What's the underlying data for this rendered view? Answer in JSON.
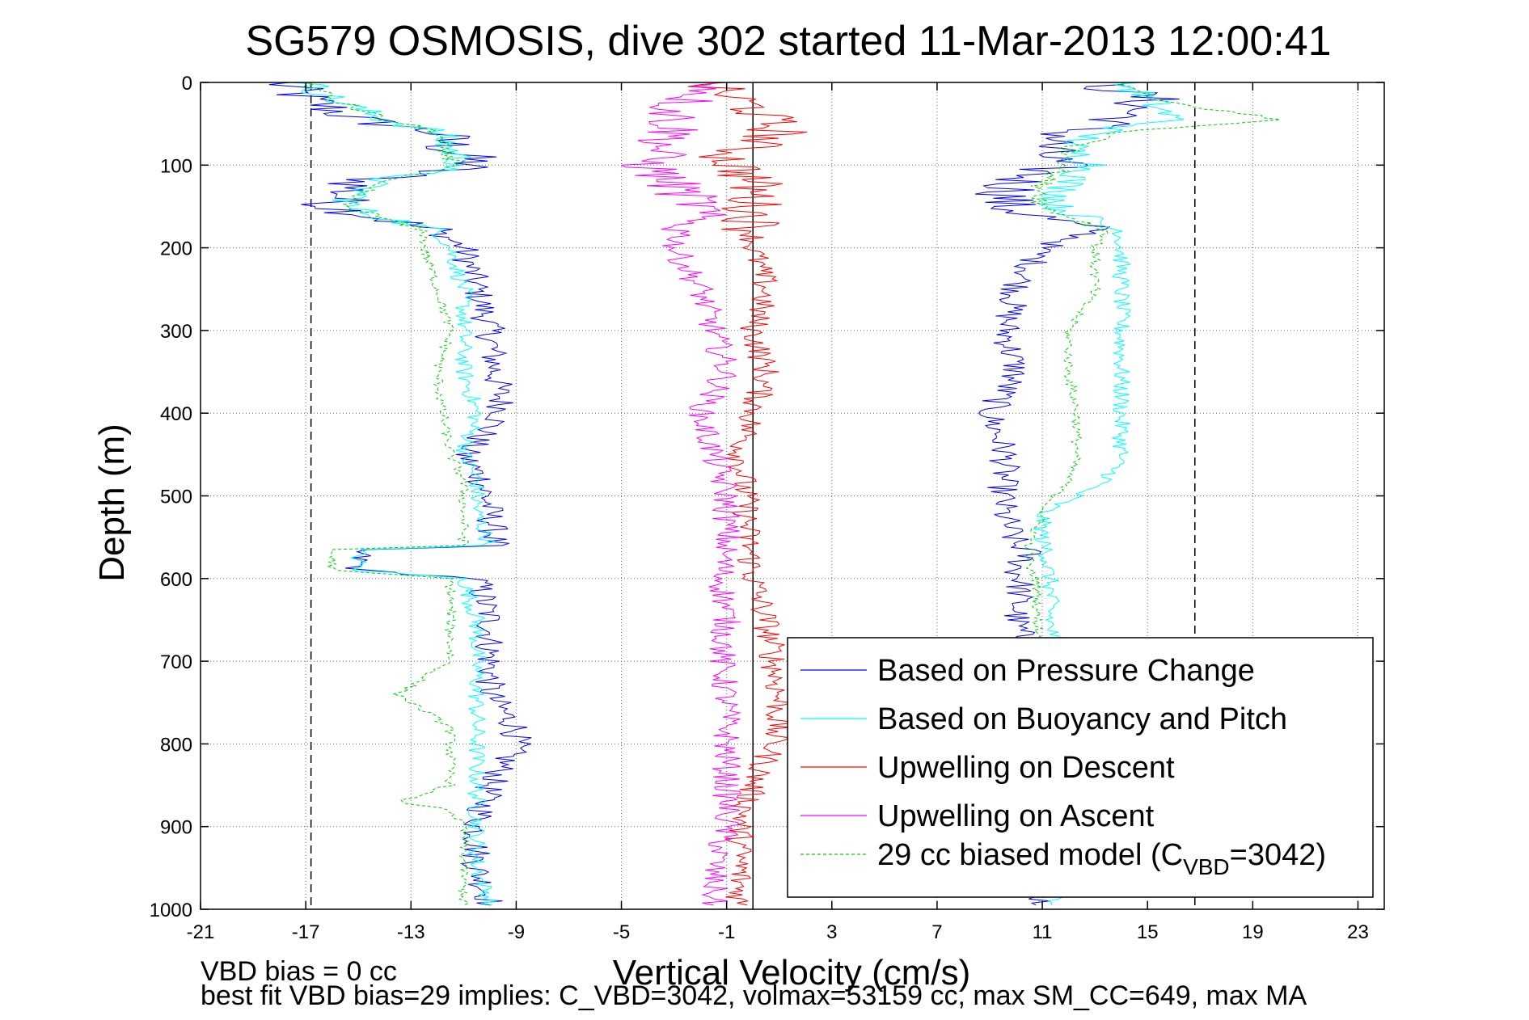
{
  "chart_data": {
    "type": "line",
    "title": "SG579 OSMOSIS, dive 302 started 11-Mar-2013 12:00:41",
    "xlabel": "Vertical Velocity (cm/s)",
    "ylabel": "Depth (m)",
    "xlim": [
      -21,
      24
    ],
    "ylim": [
      0,
      1000
    ],
    "y_reversed": true,
    "x_ticks": [
      -21,
      -17,
      -13,
      -9,
      -5,
      -1,
      3,
      7,
      11,
      15,
      19,
      23
    ],
    "y_ticks": [
      0,
      100,
      200,
      300,
      400,
      500,
      600,
      700,
      800,
      900,
      1000
    ],
    "grid": true,
    "legend_position": "bottom-right",
    "reference_lines": [
      {
        "x": -16.8,
        "style": "dashed",
        "color": "#000000"
      },
      {
        "x": 0,
        "style": "solid",
        "color": "#000000"
      },
      {
        "x": 16.8,
        "style": "dashed",
        "color": "#000000"
      }
    ],
    "series": [
      {
        "name": "Based on Pressure Change",
        "color": "#0000ff",
        "style": "solid",
        "depth": [
          0,
          20,
          45,
          60,
          80,
          100,
          120,
          150,
          180,
          200,
          250,
          300,
          350,
          400,
          450,
          480,
          520,
          560,
          565,
          590,
          600,
          650,
          700,
          740,
          780,
          800,
          850,
          900,
          950,
          990
        ],
        "descent": [
          -18,
          -17,
          -15,
          -12,
          -11.5,
          -10.5,
          -15,
          -16,
          -12,
          -11,
          -10.5,
          -10,
          -9.8,
          -9.5,
          -11,
          -10.3,
          -10,
          -9.8,
          -15,
          -15,
          -10.5,
          -10,
          -10,
          -10,
          -9,
          -9,
          -10,
          -10.5,
          -10.5,
          -10
        ],
        "ascent": [
          13,
          15,
          14,
          12,
          11,
          11.5,
          10,
          9.5,
          13,
          11,
          10,
          9.6,
          10,
          9,
          9.6,
          9.5,
          9.5,
          10,
          10.5,
          10,
          10.2,
          10,
          10.5,
          10.5,
          10.8,
          11,
          11,
          11,
          11,
          11
        ]
      },
      {
        "name": "Based on Buoyancy and Pitch",
        "color": "#00ffff",
        "style": "solid",
        "depth": [
          0,
          20,
          45,
          60,
          80,
          100,
          120,
          150,
          180,
          200,
          250,
          300,
          350,
          400,
          450,
          480,
          520,
          560,
          565,
          590,
          600,
          650,
          700,
          740,
          780,
          800,
          850,
          900,
          950,
          990
        ],
        "descent": [
          -17,
          -16,
          -14,
          -12,
          -11.5,
          -11,
          -14.5,
          -15.5,
          -12,
          -11.5,
          -11,
          -11,
          -11,
          -10.5,
          -11,
          -10.5,
          -10.5,
          -10,
          -15,
          -15,
          -11,
          -10.5,
          -10.5,
          -10.5,
          -10.5,
          -10.5,
          -10.5,
          -10.5,
          -10.5,
          -10
        ],
        "ascent": [
          14,
          15,
          16,
          13,
          12,
          13,
          12,
          11.5,
          14,
          14,
          14,
          14,
          14,
          14,
          14,
          13.5,
          11,
          11,
          11.2,
          11.2,
          11.3,
          11.3,
          11.5,
          11.5,
          11.5,
          11.5,
          11.5,
          11.5,
          11.5,
          11.5
        ]
      },
      {
        "name": "Upwelling on Descent",
        "color": "#ff0000",
        "style": "solid",
        "depth": [
          0,
          30,
          60,
          90,
          120,
          150,
          200,
          250,
          300,
          350,
          400,
          450,
          500,
          550,
          600,
          650,
          700,
          750,
          800,
          850,
          900,
          950,
          980
        ],
        "values": [
          -2,
          0,
          1,
          -1,
          0,
          0,
          0,
          0.5,
          0,
          0.5,
          0,
          -0.5,
          -0.3,
          -0.2,
          0,
          0.5,
          0.8,
          1,
          0.8,
          0,
          -0.5,
          -0.5,
          -0.5
        ]
      },
      {
        "name": "Upwelling on Ascent",
        "color": "#ff00ff",
        "style": "solid",
        "depth": [
          0,
          30,
          60,
          100,
          150,
          200,
          250,
          300,
          350,
          400,
          450,
          500,
          550,
          600,
          650,
          700,
          750,
          800,
          850,
          900,
          950,
          990
        ],
        "values": [
          -1,
          -3,
          -3,
          -4,
          -2,
          -3,
          -2,
          -1.5,
          -1,
          -2,
          -1.5,
          -1,
          -1,
          -1.2,
          -1,
          -1.2,
          -1,
          -1,
          -1,
          -1,
          -1.5,
          -1.5
        ]
      },
      {
        "name": "29 cc biased model (C_VBD=3042)",
        "color": "#00cc00",
        "style": "dashed",
        "depth": [
          0,
          20,
          45,
          60,
          80,
          100,
          120,
          150,
          180,
          200,
          250,
          300,
          350,
          400,
          450,
          480,
          520,
          560,
          565,
          590,
          600,
          650,
          700,
          740,
          780,
          800,
          850,
          870,
          880,
          900,
          950,
          990
        ],
        "descent": [
          -17,
          -16,
          -14,
          -12,
          -12,
          -11,
          -14.5,
          -15.5,
          -12.5,
          -12.5,
          -12,
          -11.5,
          -12,
          -11.8,
          -11.5,
          -11,
          -11,
          -11,
          -16,
          -16,
          -11.5,
          -11.5,
          -11.5,
          -13.5,
          -11.5,
          -11.5,
          -11.5,
          -13.5,
          -11.5,
          -11,
          -11,
          -11
        ],
        "ascent": [
          14,
          15,
          20,
          14,
          12,
          12,
          11,
          11,
          13.5,
          13,
          13,
          12,
          12,
          12.3,
          12.3,
          12,
          11,
          10.5,
          10.5,
          10.5,
          10.8,
          10.8,
          11,
          11,
          11,
          11,
          11,
          11,
          11,
          11,
          11,
          11
        ]
      }
    ],
    "legend_labels": [
      {
        "text": "Based on Pressure Change"
      },
      {
        "text": "Based on Buoyancy and Pitch"
      },
      {
        "text": "Upwelling on Descent"
      },
      {
        "text": "Upwelling on Ascent"
      },
      {
        "text_main": "29 cc biased model (C",
        "text_sub": "VBD",
        "text_tail": "=3042)"
      }
    ]
  },
  "footer": {
    "line1": "VBD bias = 0 cc",
    "line2": "best fit VBD bias=29 implies: C_VBD=3042, volmax=53159 cc, max SM_CC=649, max MA"
  }
}
